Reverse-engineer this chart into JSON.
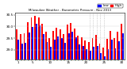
{
  "title": "Milwaukee Weather - Barometric Pressure - Nov 2013",
  "legend_high_label": "High",
  "legend_low_label": "Low",
  "color_high": "#ff0000",
  "color_low": "#0000ff",
  "background": "#ffffff",
  "days": [
    1,
    2,
    3,
    4,
    5,
    6,
    7,
    8,
    9,
    10,
    11,
    12,
    13,
    14,
    15,
    16,
    17,
    18,
    19,
    20,
    21,
    22,
    23,
    24,
    25,
    26,
    27,
    28,
    29,
    30
  ],
  "high": [
    29.88,
    29.67,
    29.72,
    30.18,
    30.38,
    30.45,
    30.38,
    30.12,
    29.78,
    29.52,
    29.8,
    29.94,
    29.88,
    29.68,
    30.08,
    30.15,
    29.9,
    29.62,
    29.55,
    29.4,
    29.35,
    29.52,
    29.65,
    29.28,
    29.1,
    29.48,
    29.82,
    29.52,
    29.78,
    30.12
  ],
  "low": [
    29.45,
    29.28,
    29.32,
    29.75,
    29.98,
    30.1,
    30.05,
    29.68,
    29.35,
    29.15,
    29.45,
    29.58,
    29.5,
    29.3,
    29.72,
    29.78,
    29.55,
    29.25,
    29.18,
    29.02,
    28.98,
    29.12,
    29.18,
    28.85,
    28.72,
    29.05,
    29.45,
    29.08,
    29.38,
    29.72
  ],
  "dotted_days": [
    21,
    22,
    23,
    24,
    25
  ],
  "bar_bottom": 28.6,
  "ylim": [
    28.6,
    30.6
  ],
  "yticks": [
    29.0,
    29.5,
    30.0,
    30.5
  ],
  "xtick_days": [
    1,
    5,
    10,
    15,
    20,
    25,
    30
  ]
}
